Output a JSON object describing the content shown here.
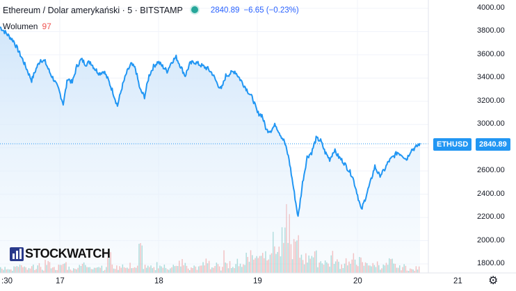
{
  "legend": {
    "symbol_title": "Ethereum / Dolar amerykański · 5 · BITSTAMP",
    "price": "2840.89",
    "change": "−6.65 (−0.23%)",
    "volume_label": "Wolumen",
    "volume_value": "97"
  },
  "price_tag": {
    "symbol": "ETHUSD",
    "value": "2840.89"
  },
  "logo_text": "STOCKWATCH",
  "right_axis_ticks": [
    "4000.00",
    "3800.00",
    "3600.00",
    "3400.00",
    "3200.00",
    "3000.00",
    "2800.00",
    "2600.00",
    "2400.00",
    "2200.00",
    "2000.00",
    "1800.00"
  ],
  "bottom_axis_ticks": [
    ":30",
    "17",
    "18",
    "19",
    "20",
    "21"
  ],
  "colors": {
    "line": "#2196f3",
    "area_top": "#cfe5fa",
    "vol_up": "#26a69a",
    "vol_down": "#ef5350",
    "tag_bg": "#2196f3"
  },
  "chart_data": {
    "type": "area",
    "ylim": [
      1750,
      4060
    ],
    "last_price": 2840.89,
    "series": [
      {
        "values": [
          3840,
          3800,
          3760,
          3720,
          3640,
          3560,
          3470,
          3380,
          3480,
          3560,
          3540,
          3450,
          3380,
          3300,
          3180,
          3400,
          3360,
          3500,
          3560,
          3520,
          3540,
          3480,
          3440,
          3460,
          3380,
          3280,
          3160,
          3320,
          3440,
          3520,
          3480,
          3300,
          3240,
          3420,
          3500,
          3540,
          3500,
          3460,
          3540,
          3580,
          3500,
          3420,
          3520,
          3540,
          3520,
          3500,
          3480,
          3440,
          3360,
          3300,
          3420,
          3440,
          3460,
          3400,
          3340,
          3280,
          3220,
          3100,
          3080,
          2950,
          2950,
          3000,
          2920,
          2850,
          2700,
          2450,
          2200,
          2500,
          2720,
          2760,
          2880,
          2860,
          2760,
          2700,
          2780,
          2720,
          2680,
          2620,
          2560,
          2420,
          2260,
          2380,
          2500,
          2640,
          2560,
          2600,
          2680,
          2720,
          2760,
          2740,
          2700,
          2780,
          2800,
          2840
        ]
      }
    ],
    "volume_values": [
      8,
      12,
      6,
      10,
      14,
      9,
      7,
      11,
      13,
      8,
      20,
      15,
      9,
      12,
      18,
      10,
      7,
      14,
      22,
      11,
      9,
      16,
      13,
      8,
      35,
      12,
      10,
      18,
      9,
      14,
      11,
      45,
      13,
      10,
      8,
      17,
      12,
      9,
      14,
      11,
      20,
      15,
      8,
      12,
      10,
      16,
      25,
      11,
      14,
      9,
      30,
      18,
      12,
      22,
      15,
      40,
      35,
      28,
      45,
      38,
      50,
      55,
      42,
      60,
      95,
      48,
      52,
      35,
      28,
      40,
      30,
      22,
      25,
      18,
      30,
      20,
      15,
      24,
      18,
      28,
      22,
      16,
      20,
      14,
      18,
      12,
      15,
      20,
      14,
      10,
      12,
      8,
      6,
      9
    ],
    "volume_colors": [
      "up",
      "down",
      "up",
      "down",
      "down",
      "up",
      "down",
      "up",
      "down",
      "up",
      "down",
      "up",
      "down",
      "up",
      "down",
      "up",
      "down",
      "down",
      "up",
      "down",
      "up",
      "down",
      "up",
      "down",
      "down",
      "up",
      "down",
      "up",
      "down",
      "up",
      "down",
      "down",
      "up",
      "down",
      "up",
      "down",
      "up",
      "down",
      "up",
      "down",
      "down",
      "up",
      "down",
      "up",
      "down",
      "up",
      "down",
      "up",
      "down",
      "up",
      "down",
      "down",
      "up",
      "down",
      "up",
      "down",
      "down",
      "up",
      "down",
      "up",
      "down",
      "down",
      "up",
      "down",
      "down",
      "up",
      "down",
      "up",
      "up",
      "down",
      "up",
      "down",
      "up",
      "down",
      "up",
      "down",
      "up",
      "down",
      "down",
      "up",
      "down",
      "up",
      "up",
      "down",
      "up",
      "down",
      "up",
      "down",
      "up",
      "up",
      "down",
      "up",
      "down",
      "up"
    ]
  }
}
